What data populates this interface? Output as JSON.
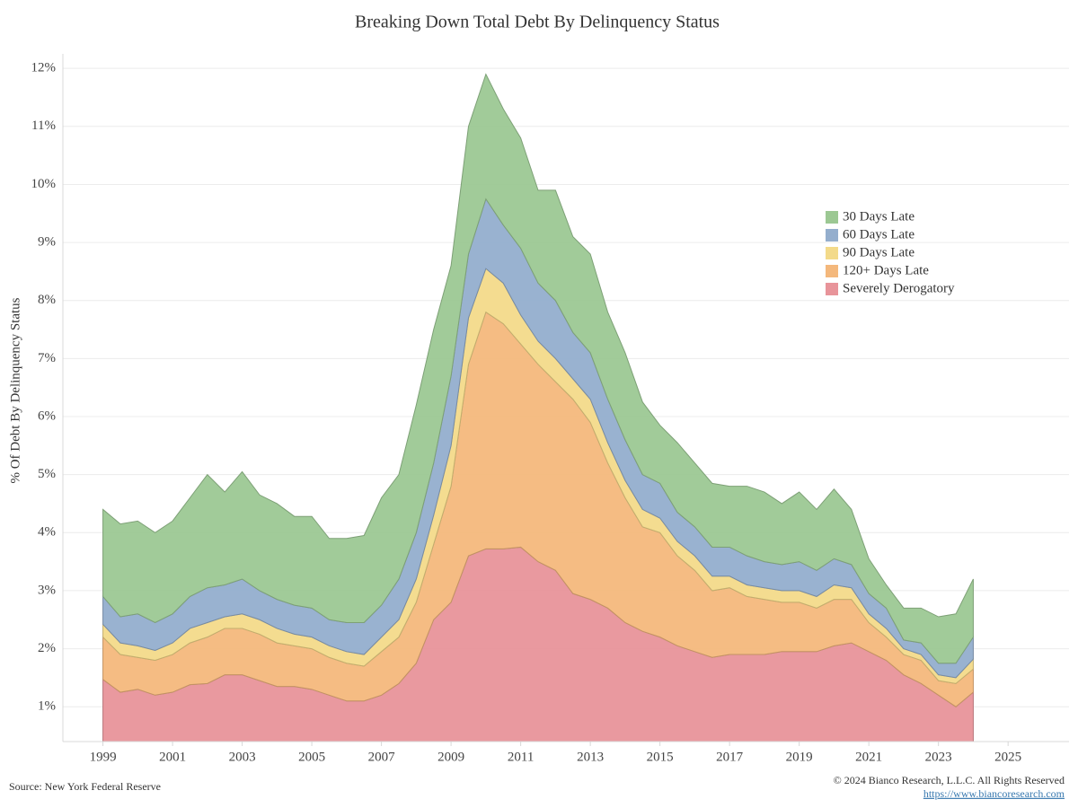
{
  "chart_data": {
    "type": "stacked_area",
    "title": "Breaking Down Total Debt By Delinquency Status",
    "y_label": "% Of Debt By Delinquency Status",
    "x": [
      1999.0,
      1999.5,
      2000.0,
      2000.5,
      2001.0,
      2001.5,
      2002.0,
      2002.5,
      2003.0,
      2003.5,
      2004.0,
      2004.5,
      2005.0,
      2005.5,
      2006.0,
      2006.5,
      2007.0,
      2007.5,
      2008.0,
      2008.5,
      2009.0,
      2009.5,
      2010.0,
      2010.5,
      2011.0,
      2011.5,
      2012.0,
      2012.5,
      2013.0,
      2013.5,
      2014.0,
      2014.5,
      2015.0,
      2015.5,
      2016.0,
      2016.5,
      2017.0,
      2017.5,
      2018.0,
      2018.5,
      2019.0,
      2019.5,
      2020.0,
      2020.5,
      2021.0,
      2021.5,
      2022.0,
      2022.5,
      2023.0,
      2023.5,
      2024.0
    ],
    "series": [
      {
        "name": "30 Days Late",
        "color": "#9cc893",
        "values": [
          1.5,
          1.6,
          1.6,
          1.55,
          1.6,
          1.7,
          1.95,
          1.6,
          1.85,
          1.65,
          1.65,
          1.53,
          1.58,
          1.4,
          1.45,
          1.5,
          1.85,
          1.8,
          2.2,
          2.3,
          1.9,
          2.2,
          2.15,
          2.0,
          1.9,
          1.6,
          1.9,
          1.65,
          1.7,
          1.5,
          1.5,
          1.25,
          1.0,
          1.2,
          1.1,
          1.1,
          1.05,
          1.2,
          1.2,
          1.05,
          1.2,
          1.05,
          1.2,
          0.95,
          0.6,
          0.4,
          0.55,
          0.6,
          0.8,
          0.85,
          1.0
        ]
      },
      {
        "name": "60 Days Late",
        "color": "#94aecd",
        "values": [
          0.48,
          0.45,
          0.55,
          0.48,
          0.5,
          0.55,
          0.6,
          0.55,
          0.6,
          0.5,
          0.5,
          0.5,
          0.5,
          0.45,
          0.5,
          0.55,
          0.55,
          0.7,
          0.8,
          0.9,
          1.2,
          1.1,
          1.2,
          1.0,
          1.15,
          1.0,
          1.0,
          0.8,
          0.8,
          0.75,
          0.7,
          0.6,
          0.6,
          0.5,
          0.5,
          0.5,
          0.5,
          0.5,
          0.45,
          0.45,
          0.5,
          0.45,
          0.45,
          0.4,
          0.35,
          0.35,
          0.15,
          0.2,
          0.2,
          0.25,
          0.38
        ]
      },
      {
        "name": "90 Days Late",
        "color": "#f3da8a",
        "values": [
          0.22,
          0.2,
          0.2,
          0.17,
          0.2,
          0.25,
          0.25,
          0.2,
          0.25,
          0.25,
          0.25,
          0.2,
          0.2,
          0.2,
          0.2,
          0.2,
          0.25,
          0.3,
          0.4,
          0.5,
          0.7,
          0.8,
          0.75,
          0.7,
          0.5,
          0.4,
          0.4,
          0.35,
          0.4,
          0.35,
          0.3,
          0.3,
          0.25,
          0.25,
          0.25,
          0.25,
          0.2,
          0.2,
          0.2,
          0.2,
          0.2,
          0.2,
          0.25,
          0.2,
          0.15,
          0.15,
          0.1,
          0.1,
          0.1,
          0.1,
          0.17
        ]
      },
      {
        "name": "120+ Days Late",
        "color": "#f4b87c",
        "values": [
          0.73,
          0.65,
          0.55,
          0.6,
          0.65,
          0.72,
          0.8,
          0.8,
          0.8,
          0.8,
          0.75,
          0.7,
          0.7,
          0.65,
          0.65,
          0.6,
          0.75,
          0.8,
          1.05,
          1.3,
          2.0,
          3.3,
          4.08,
          3.88,
          3.5,
          3.4,
          3.25,
          3.35,
          3.05,
          2.5,
          2.15,
          1.8,
          1.8,
          1.55,
          1.4,
          1.15,
          1.15,
          1.0,
          0.95,
          0.85,
          0.85,
          0.75,
          0.8,
          0.75,
          0.5,
          0.4,
          0.35,
          0.4,
          0.25,
          0.4,
          0.4
        ]
      },
      {
        "name": "Severely Derogatory",
        "color": "#e8949a",
        "values": [
          1.47,
          1.25,
          1.3,
          1.2,
          1.25,
          1.38,
          1.4,
          1.55,
          1.55,
          1.45,
          1.35,
          1.35,
          1.3,
          1.2,
          1.1,
          1.1,
          1.2,
          1.4,
          1.75,
          2.5,
          2.8,
          3.6,
          3.72,
          3.72,
          3.75,
          3.5,
          3.35,
          2.95,
          2.85,
          2.7,
          2.45,
          2.3,
          2.2,
          2.05,
          1.95,
          1.85,
          1.9,
          1.9,
          1.9,
          1.95,
          1.95,
          1.95,
          2.05,
          2.1,
          1.95,
          1.8,
          1.55,
          1.4,
          1.2,
          1.0,
          1.25
        ]
      }
    ],
    "xlim": [
      1997.85,
      2026.75
    ],
    "xticks": [
      1999,
      2001,
      2003,
      2005,
      2007,
      2009,
      2011,
      2013,
      2015,
      2017,
      2019,
      2021,
      2023,
      2025
    ],
    "ylim": [
      0.4,
      12.25
    ],
    "yticks": [
      {
        "value": 1,
        "label": "1%"
      },
      {
        "value": 2,
        "label": "2%"
      },
      {
        "value": 3,
        "label": "3%"
      },
      {
        "value": 4,
        "label": "4%"
      },
      {
        "value": 5,
        "label": "5%"
      },
      {
        "value": 6,
        "label": "6%"
      },
      {
        "value": 7,
        "label": "7%"
      },
      {
        "value": 8,
        "label": "8%"
      },
      {
        "value": 9,
        "label": "9%"
      },
      {
        "value": 10,
        "label": "10%"
      },
      {
        "value": 11,
        "label": "11%"
      },
      {
        "value": 12,
        "label": "12%"
      }
    ],
    "grid": true
  },
  "footer": {
    "source": "Source: New York Federal Reserve",
    "copyright": "© 2024 Bianco Research, L.L.C. All Rights Reserved",
    "url": "https://www.biancoresearch.com"
  }
}
